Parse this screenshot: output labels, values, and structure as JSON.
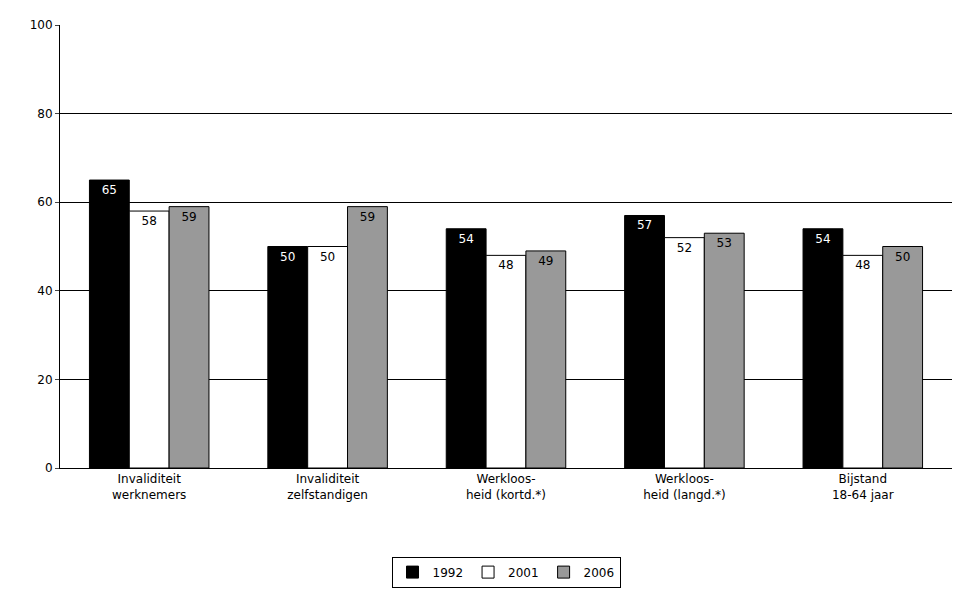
{
  "chart_data": {
    "type": "bar",
    "categories": [
      "Invaliditeit\nwerknemers",
      "Invaliditeit\nzelfstandigen",
      "Werkloos-\nheid (kortd.*)",
      "Werkloos-\nheid (langd.*)",
      "Bijstand\n18-64 jaar"
    ],
    "series": [
      {
        "name": "1992",
        "color": "#000000",
        "values": [
          65,
          50,
          54,
          57,
          54
        ]
      },
      {
        "name": "2001",
        "color": "#ffffff",
        "values": [
          58,
          50,
          48,
          52,
          48
        ]
      },
      {
        "name": "2006",
        "color": "#999999",
        "values": [
          59,
          59,
          49,
          53,
          50
        ]
      }
    ],
    "ylim": [
      0,
      100
    ],
    "yticks": [
      0,
      20,
      40,
      60,
      80,
      100
    ],
    "grid": true,
    "legend": "bottom",
    "data_labels": true
  }
}
